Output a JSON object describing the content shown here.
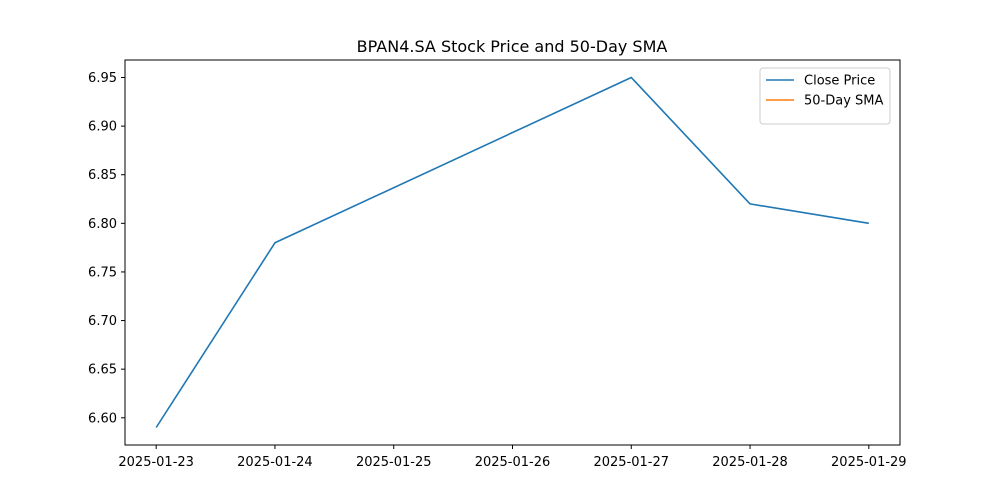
{
  "chart_data": {
    "type": "line",
    "title": "BPAN4.SA Stock Price and 50-Day SMA",
    "xlabel": "",
    "ylabel": "",
    "x": [
      "2025-01-23",
      "2025-01-24",
      "2025-01-25",
      "2025-01-26",
      "2025-01-27",
      "2025-01-28",
      "2025-01-29"
    ],
    "x_ticks": [
      "2025-01-23",
      "2025-01-24",
      "2025-01-25",
      "2025-01-26",
      "2025-01-27",
      "2025-01-28",
      "2025-01-29"
    ],
    "y_ticks": [
      "6.60",
      "6.65",
      "6.70",
      "6.75",
      "6.80",
      "6.85",
      "6.90",
      "6.95"
    ],
    "xlim": [
      "2025-01-22 17:42",
      "2025-01-29 06:18"
    ],
    "ylim": [
      6.572,
      6.968
    ],
    "grid": false,
    "legend_position": "top-right",
    "series": [
      {
        "name": "Close Price",
        "color": "#1f77b4",
        "points": [
          {
            "x": "2025-01-23",
            "y": 6.59
          },
          {
            "x": "2025-01-24",
            "y": 6.78
          },
          {
            "x": "2025-01-27",
            "y": 6.95
          },
          {
            "x": "2025-01-28",
            "y": 6.82
          },
          {
            "x": "2025-01-29",
            "y": 6.8
          }
        ]
      },
      {
        "name": "50-Day SMA",
        "color": "#ff7f0e",
        "points": []
      }
    ]
  }
}
